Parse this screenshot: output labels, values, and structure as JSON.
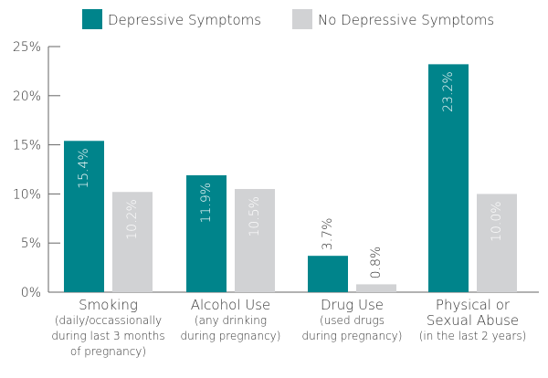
{
  "chart_data": {
    "type": "bar",
    "categories": [
      [
        "Smoking",
        "(daily/occassionally",
        "during last 3 months",
        "of pregnancy)"
      ],
      [
        "Alcohol Use",
        "(any drinking",
        "during pregnancy)"
      ],
      [
        "Drug Use",
        "(used drugs",
        "during pregnancy)"
      ],
      [
        "Physical or",
        "Sexual Abuse",
        "(in the last 2 years)"
      ]
    ],
    "series": [
      {
        "name": "Depressive Symptoms",
        "color": "#00848b",
        "values": [
          15.4,
          11.9,
          3.7,
          23.2
        ],
        "labels": [
          "15.4%",
          "11.9%",
          "3.7%",
          "23.2%"
        ]
      },
      {
        "name": "No Depressive Symptoms",
        "color": "#d1d2d4",
        "values": [
          10.2,
          10.5,
          0.8,
          10.0
        ],
        "labels": [
          "10.2%",
          "10.5%",
          "0.8%",
          "10.0%"
        ]
      }
    ],
    "yticks": [
      "0%",
      "5%",
      "10%",
      "15%",
      "20%",
      "25%"
    ],
    "ylim": [
      0,
      25
    ],
    "xlabel": "",
    "ylabel": "",
    "grid": false,
    "legend": "top"
  }
}
